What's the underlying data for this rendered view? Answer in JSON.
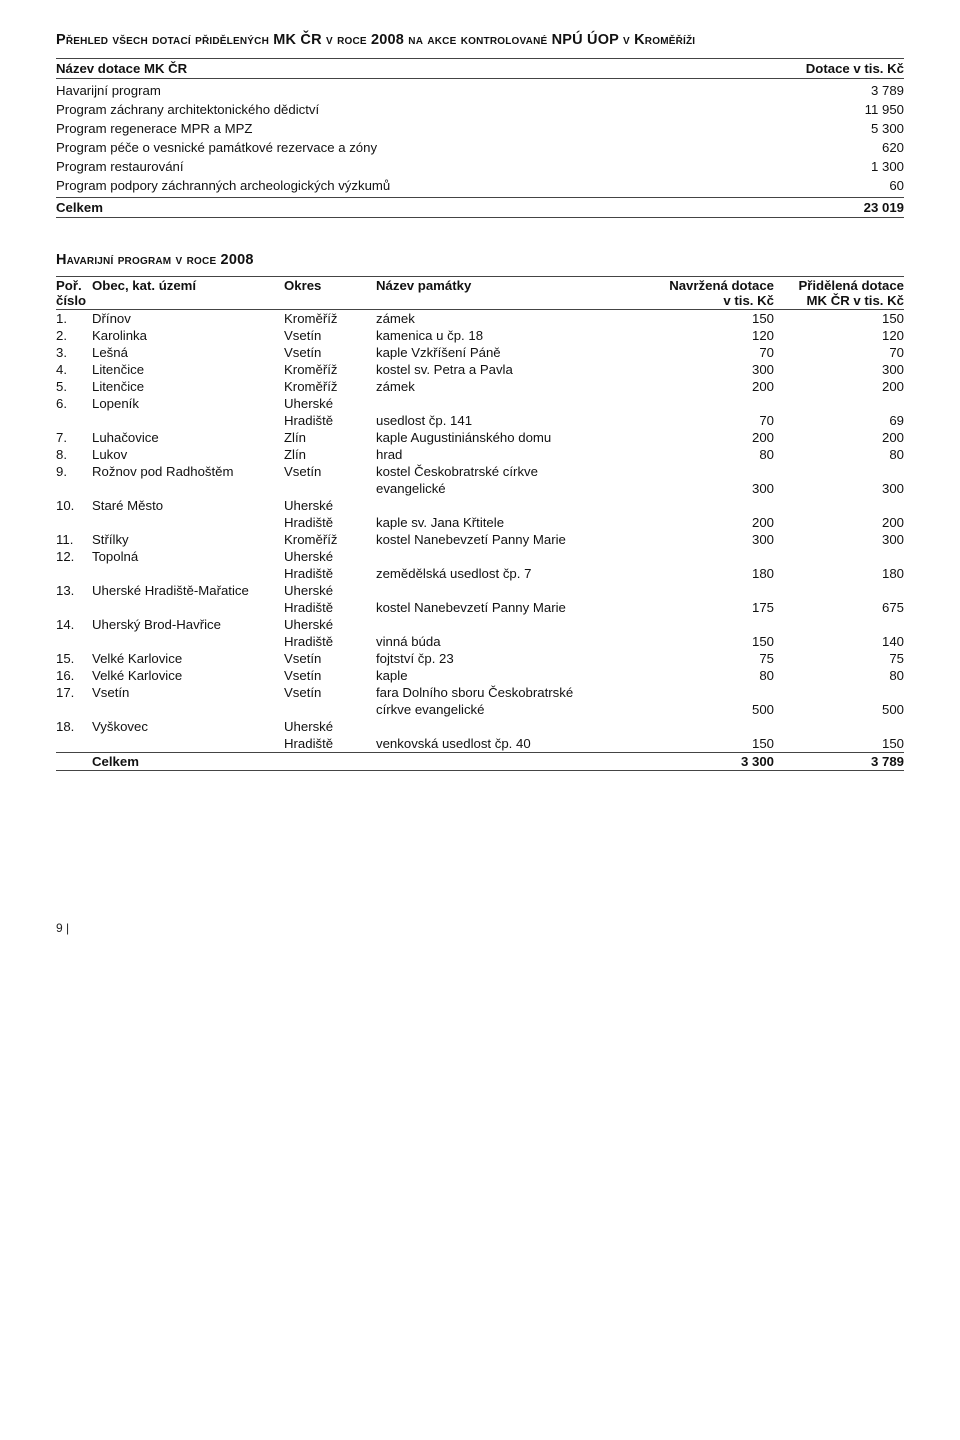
{
  "title1_a": "Přehled všech dotací přidělených MK ČR v roce 2008 na akce kontrolované NPÚ ÚOP v Kroměříži",
  "summary": {
    "head_name": "Název dotace MK ČR",
    "head_amount": "Dotace v tis. Kč",
    "rows": [
      {
        "name": "Havarijní program",
        "amount": "3 789"
      },
      {
        "name": "Program záchrany architektonického dědictví",
        "amount": "11 950"
      },
      {
        "name": "Program regenerace MPR a MPZ",
        "amount": "5 300"
      },
      {
        "name": "Program péče o vesnické památkové rezervace a zóny",
        "amount": "620"
      },
      {
        "name": "Program restaurování",
        "amount": "1 300"
      },
      {
        "name": "Program podpory záchranných archeologických výzkumů",
        "amount": "60"
      }
    ],
    "total_label": "Celkem",
    "total_amount": "23 019"
  },
  "title3": "Havarijní program v roce 2008",
  "detail": {
    "head": {
      "no1": "Poř.",
      "no2": "číslo",
      "obec": "Obec, kat. území",
      "okres": "Okres",
      "pam": "Název památky",
      "nav1": "Navržená dotace",
      "nav2": "v tis. Kč",
      "pri1": "Přidělená dotace",
      "pri2": "MK ČR v tis. Kč"
    },
    "rows": [
      {
        "no": "1.",
        "obec": "Dřínov",
        "okres": "Kroměříž",
        "pam": "zámek",
        "nav": "150",
        "pri": "150"
      },
      {
        "no": "2.",
        "obec": "Karolinka",
        "okres": "Vsetín",
        "pam": "kamenica u čp. 18",
        "nav": "120",
        "pri": "120"
      },
      {
        "no": "3.",
        "obec": "Lešná",
        "okres": "Vsetín",
        "pam": "kaple Vzkříšení Páně",
        "nav": "70",
        "pri": "70"
      },
      {
        "no": "4.",
        "obec": "Litenčice",
        "okres": "Kroměříž",
        "pam": "kostel sv. Petra a Pavla",
        "nav": "300",
        "pri": "300"
      },
      {
        "no": "5.",
        "obec": "Litenčice",
        "okres": "Kroměříž",
        "pam": "zámek",
        "nav": "200",
        "pri": "200"
      },
      {
        "no": "6.",
        "obec": "Lopeník",
        "okres": "Uherské",
        "okres2": "Hradiště",
        "pam": "usedlost čp. 141",
        "nav": "70",
        "pri": "69"
      },
      {
        "no": "7.",
        "obec": "Luhačovice",
        "okres": "Zlín",
        "pam": "kaple Augustiniánského domu",
        "nav": "200",
        "pri": "200"
      },
      {
        "no": "8.",
        "obec": "Lukov",
        "okres": "Zlín",
        "pam": "hrad",
        "nav": "80",
        "pri": "80"
      },
      {
        "no": "9.",
        "obec": "Rožnov pod Radhoštěm",
        "okres": "Vsetín",
        "pam": "kostel Českobratrské církve",
        "pam2": "evangelické",
        "nav": "300",
        "pri": "300"
      },
      {
        "no": "10.",
        "obec": "Staré Město",
        "okres": "Uherské",
        "okres2": "Hradiště",
        "pam": "kaple sv. Jana Křtitele",
        "nav": "200",
        "pri": "200"
      },
      {
        "no": "11.",
        "obec": "Střílky",
        "okres": "Kroměříž",
        "pam": "kostel Nanebevzetí Panny Marie",
        "nav": "300",
        "pri": "300"
      },
      {
        "no": "12.",
        "obec": "Topolná",
        "okres": "Uherské",
        "okres2": "Hradiště",
        "pam": "zemědělská usedlost čp. 7",
        "nav": "180",
        "pri": "180"
      },
      {
        "no": "13.",
        "obec": "Uherské Hradiště-Mařatice",
        "okres": "Uherské",
        "okres2": "Hradiště",
        "pam": "kostel Nanebevzetí Panny Marie",
        "nav": "175",
        "pri": "675"
      },
      {
        "no": "14.",
        "obec": "Uherský Brod-Havřice",
        "okres": "Uherské",
        "okres2": "Hradiště",
        "pam": "vinná búda",
        "nav": "150",
        "pri": "140"
      },
      {
        "no": "15.",
        "obec": "Velké Karlovice",
        "okres": "Vsetín",
        "pam": "fojtství čp. 23",
        "nav": "75",
        "pri": "75"
      },
      {
        "no": "16.",
        "obec": "Velké Karlovice",
        "okres": "Vsetín",
        "pam": "kaple",
        "nav": "80",
        "pri": "80"
      },
      {
        "no": "17.",
        "obec": "Vsetín",
        "okres": "Vsetín",
        "pam": "fara Dolního sboru Českobratrské",
        "pam2": "církve evangelické",
        "nav": "500",
        "pri": "500"
      },
      {
        "no": "18.",
        "obec": "Vyškovec",
        "okres": "Uherské",
        "okres2": "Hradiště",
        "pam": "venkovská usedlost čp. 40",
        "nav": "150",
        "pri": "150"
      }
    ],
    "total_label": "Celkem",
    "total_nav": "3 300",
    "total_pri": "3 789"
  },
  "page_no": "9 |"
}
